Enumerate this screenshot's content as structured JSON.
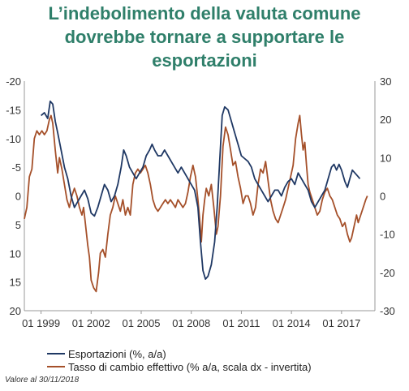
{
  "title_lines": [
    "L’indebolimento della valuta comune",
    "dovrebbe tornare a supportare le",
    "esportazioni"
  ],
  "note": "Valore al 30/11/2018",
  "colors": {
    "title": "#2f7f6a",
    "series1": "#1f3864",
    "series2": "#a5502a",
    "axis": "#999999"
  },
  "chart_data": {
    "type": "line",
    "title": "L’indebolimento della valuta comune dovrebbe tornare a supportare le esportazioni",
    "legend_position": "bottom-left",
    "grid": false,
    "x_ticks": [
      {
        "year": 1999,
        "label": "01 1999"
      },
      {
        "year": 2002,
        "label": "01 2002"
      },
      {
        "year": 2005,
        "label": "01 2005"
      },
      {
        "year": 2008,
        "label": "01 2008"
      },
      {
        "year": 2011,
        "label": "01 2011"
      },
      {
        "year": 2014,
        "label": "01 2014"
      },
      {
        "year": 2017,
        "label": "01 2017"
      }
    ],
    "xlim": [
      1998.0,
      2019.0
    ],
    "y_left": {
      "range_top": -20,
      "range_bottom": 20,
      "inverted": true,
      "ticks": [
        {
          "value": -20,
          "label": "-20"
        },
        {
          "value": -15,
          "label": "-15"
        },
        {
          "value": -10,
          "label": "-10"
        },
        {
          "value": -5,
          "label": "-5"
        },
        {
          "value": 0,
          "label": "0"
        },
        {
          "value": 5,
          "label": "5"
        },
        {
          "value": 10,
          "label": "10"
        },
        {
          "value": 15,
          "label": "15"
        },
        {
          "value": 20,
          "label": "20"
        }
      ]
    },
    "y_right": {
      "range_top": 30,
      "range_bottom": -30,
      "ticks": [
        {
          "value": 30,
          "label": "30"
        },
        {
          "value": 20,
          "label": "20"
        },
        {
          "value": 10,
          "label": "10"
        },
        {
          "value": 0,
          "label": "0"
        },
        {
          "value": -10,
          "label": "-10"
        },
        {
          "value": -20,
          "label": "-20"
        },
        {
          "value": -30,
          "label": "-30"
        }
      ]
    },
    "series": [
      {
        "name": "Esportazioni (%, a/a)",
        "axis": "left",
        "points": [
          [
            1999.0,
            -14
          ],
          [
            1999.2,
            -14.5
          ],
          [
            1999.4,
            -13.5
          ],
          [
            1999.55,
            -16.5
          ],
          [
            1999.7,
            -16
          ],
          [
            1999.85,
            -13
          ],
          [
            2000.0,
            -11
          ],
          [
            2000.2,
            -8
          ],
          [
            2000.4,
            -5
          ],
          [
            2000.6,
            -3
          ],
          [
            2000.8,
            0
          ],
          [
            2001.0,
            2
          ],
          [
            2001.2,
            1
          ],
          [
            2001.4,
            0
          ],
          [
            2001.6,
            -1
          ],
          [
            2001.8,
            0.5
          ],
          [
            2002.0,
            3
          ],
          [
            2002.2,
            3.5
          ],
          [
            2002.4,
            2
          ],
          [
            2002.6,
            0
          ],
          [
            2002.8,
            -2
          ],
          [
            2003.0,
            -1
          ],
          [
            2003.2,
            1
          ],
          [
            2003.4,
            0
          ],
          [
            2003.6,
            -2
          ],
          [
            2003.8,
            -5
          ],
          [
            2003.95,
            -8
          ],
          [
            2004.1,
            -7
          ],
          [
            2004.3,
            -5
          ],
          [
            2004.5,
            -4
          ],
          [
            2004.7,
            -3
          ],
          [
            2004.9,
            -4
          ],
          [
            2005.1,
            -5
          ],
          [
            2005.3,
            -7
          ],
          [
            2005.5,
            -8
          ],
          [
            2005.65,
            -9
          ],
          [
            2005.8,
            -8
          ],
          [
            2006.0,
            -7
          ],
          [
            2006.2,
            -7
          ],
          [
            2006.4,
            -8
          ],
          [
            2006.6,
            -7
          ],
          [
            2006.8,
            -6
          ],
          [
            2007.0,
            -5
          ],
          [
            2007.2,
            -4
          ],
          [
            2007.4,
            -5
          ],
          [
            2007.6,
            -4
          ],
          [
            2007.8,
            -3
          ],
          [
            2008.0,
            -2
          ],
          [
            2008.2,
            -1
          ],
          [
            2008.4,
            2
          ],
          [
            2008.55,
            8
          ],
          [
            2008.7,
            13
          ],
          [
            2008.85,
            14.5
          ],
          [
            2009.0,
            14
          ],
          [
            2009.2,
            12
          ],
          [
            2009.4,
            8
          ],
          [
            2009.55,
            2
          ],
          [
            2009.7,
            -6
          ],
          [
            2009.85,
            -14
          ],
          [
            2010.0,
            -15.5
          ],
          [
            2010.2,
            -15
          ],
          [
            2010.4,
            -13
          ],
          [
            2010.6,
            -11
          ],
          [
            2010.8,
            -9
          ],
          [
            2011.0,
            -7
          ],
          [
            2011.2,
            -6.5
          ],
          [
            2011.4,
            -6
          ],
          [
            2011.6,
            -5
          ],
          [
            2011.8,
            -3
          ],
          [
            2012.0,
            -2
          ],
          [
            2012.2,
            -1
          ],
          [
            2012.4,
            0
          ],
          [
            2012.6,
            1
          ],
          [
            2012.8,
            0
          ],
          [
            2013.0,
            -1
          ],
          [
            2013.2,
            -1
          ],
          [
            2013.4,
            0
          ],
          [
            2013.6,
            -1.5
          ],
          [
            2013.8,
            -2.5
          ],
          [
            2014.0,
            -3
          ],
          [
            2014.2,
            -2
          ],
          [
            2014.4,
            -4
          ],
          [
            2014.6,
            -3
          ],
          [
            2014.8,
            -2
          ],
          [
            2015.0,
            -1
          ],
          [
            2015.2,
            1
          ],
          [
            2015.4,
            2
          ],
          [
            2015.6,
            1
          ],
          [
            2015.8,
            0
          ],
          [
            2016.0,
            -1
          ],
          [
            2016.2,
            -3
          ],
          [
            2016.4,
            -5
          ],
          [
            2016.55,
            -5.5
          ],
          [
            2016.7,
            -4.5
          ],
          [
            2016.85,
            -5.5
          ],
          [
            2017.0,
            -4.5
          ],
          [
            2017.2,
            -2.5
          ],
          [
            2017.35,
            -1.5
          ],
          [
            2017.5,
            -3
          ],
          [
            2017.65,
            -4.5
          ],
          [
            2017.8,
            -4
          ],
          [
            2017.95,
            -3.5
          ],
          [
            2018.1,
            -3
          ]
        ]
      },
      {
        "name": "Tasso di cambio effettivo (% a/a, scala dx - invertita)",
        "axis": "right",
        "points": [
          [
            1998.0,
            -6
          ],
          [
            1998.15,
            -3
          ],
          [
            1998.3,
            5
          ],
          [
            1998.45,
            7
          ],
          [
            1998.6,
            15
          ],
          [
            1998.75,
            17
          ],
          [
            1998.9,
            16
          ],
          [
            1999.05,
            17
          ],
          [
            1999.2,
            16
          ],
          [
            1999.35,
            17
          ],
          [
            1999.5,
            20
          ],
          [
            1999.6,
            21
          ],
          [
            1999.7,
            19
          ],
          [
            1999.85,
            12
          ],
          [
            2000.0,
            6
          ],
          [
            2000.1,
            10
          ],
          [
            2000.25,
            7
          ],
          [
            2000.4,
            3
          ],
          [
            2000.55,
            -1
          ],
          [
            2000.7,
            -3
          ],
          [
            2000.85,
            0
          ],
          [
            2001.0,
            2
          ],
          [
            2001.15,
            0
          ],
          [
            2001.3,
            -3
          ],
          [
            2001.45,
            -5
          ],
          [
            2001.55,
            -3
          ],
          [
            2001.65,
            -7
          ],
          [
            2001.8,
            -13
          ],
          [
            2001.9,
            -16
          ],
          [
            2002.0,
            -22
          ],
          [
            2002.15,
            -24
          ],
          [
            2002.3,
            -25
          ],
          [
            2002.45,
            -20
          ],
          [
            2002.55,
            -15
          ],
          [
            2002.7,
            -14
          ],
          [
            2002.85,
            -16
          ],
          [
            2003.0,
            -10
          ],
          [
            2003.15,
            -5
          ],
          [
            2003.3,
            -3
          ],
          [
            2003.45,
            0
          ],
          [
            2003.6,
            -2
          ],
          [
            2003.75,
            -4
          ],
          [
            2003.9,
            -1
          ],
          [
            2004.05,
            -5
          ],
          [
            2004.2,
            -3
          ],
          [
            2004.35,
            -5
          ],
          [
            2004.5,
            3
          ],
          [
            2004.65,
            6
          ],
          [
            2004.8,
            7
          ],
          [
            2004.95,
            6
          ],
          [
            2005.1,
            7
          ],
          [
            2005.25,
            8
          ],
          [
            2005.4,
            6
          ],
          [
            2005.55,
            3
          ],
          [
            2005.7,
            -1
          ],
          [
            2005.85,
            -3
          ],
          [
            2006.0,
            -4
          ],
          [
            2006.15,
            -3
          ],
          [
            2006.3,
            -2
          ],
          [
            2006.45,
            -1
          ],
          [
            2006.6,
            -2
          ],
          [
            2006.75,
            -1
          ],
          [
            2006.9,
            -2
          ],
          [
            2007.05,
            -3
          ],
          [
            2007.2,
            -1
          ],
          [
            2007.35,
            -2
          ],
          [
            2007.5,
            -3
          ],
          [
            2007.65,
            -2
          ],
          [
            2007.8,
            1
          ],
          [
            2007.95,
            5
          ],
          [
            2008.1,
            8
          ],
          [
            2008.25,
            5
          ],
          [
            2008.4,
            -1
          ],
          [
            2008.5,
            -6
          ],
          [
            2008.6,
            -12
          ],
          [
            2008.7,
            -5
          ],
          [
            2008.8,
            -1
          ],
          [
            2008.9,
            2
          ],
          [
            2009.05,
            0
          ],
          [
            2009.2,
            3
          ],
          [
            2009.35,
            -3
          ],
          [
            2009.5,
            -10
          ],
          [
            2009.6,
            -8
          ],
          [
            2009.75,
            0
          ],
          [
            2009.9,
            13
          ],
          [
            2010.05,
            18
          ],
          [
            2010.2,
            16
          ],
          [
            2010.35,
            12
          ],
          [
            2010.5,
            8
          ],
          [
            2010.65,
            9
          ],
          [
            2010.8,
            5
          ],
          [
            2010.95,
            2
          ],
          [
            2011.1,
            -2
          ],
          [
            2011.25,
            0
          ],
          [
            2011.4,
            0
          ],
          [
            2011.55,
            -2
          ],
          [
            2011.7,
            -5
          ],
          [
            2011.85,
            -3
          ],
          [
            2012.0,
            3
          ],
          [
            2012.15,
            7
          ],
          [
            2012.3,
            6
          ],
          [
            2012.45,
            9
          ],
          [
            2012.6,
            4
          ],
          [
            2012.75,
            -1
          ],
          [
            2012.9,
            -4
          ],
          [
            2013.05,
            -6
          ],
          [
            2013.2,
            -7
          ],
          [
            2013.35,
            -5
          ],
          [
            2013.5,
            -3
          ],
          [
            2013.65,
            -1
          ],
          [
            2013.8,
            2
          ],
          [
            2013.95,
            5
          ],
          [
            2014.1,
            8
          ],
          [
            2014.25,
            15
          ],
          [
            2014.4,
            19
          ],
          [
            2014.5,
            21
          ],
          [
            2014.6,
            16
          ],
          [
            2014.7,
            12
          ],
          [
            2014.8,
            14
          ],
          [
            2014.9,
            8
          ],
          [
            2015.0,
            3
          ],
          [
            2015.1,
            1
          ],
          [
            2015.25,
            -1
          ],
          [
            2015.4,
            -3
          ],
          [
            2015.55,
            -5
          ],
          [
            2015.7,
            -4
          ],
          [
            2015.85,
            -1
          ],
          [
            2016.0,
            1
          ],
          [
            2016.15,
            2
          ],
          [
            2016.3,
            0
          ],
          [
            2016.45,
            -1
          ],
          [
            2016.6,
            -3
          ],
          [
            2016.75,
            -5
          ],
          [
            2016.9,
            -6
          ],
          [
            2017.05,
            -8
          ],
          [
            2017.2,
            -7
          ],
          [
            2017.35,
            -10
          ],
          [
            2017.5,
            -12
          ],
          [
            2017.6,
            -11
          ],
          [
            2017.75,
            -8
          ],
          [
            2017.9,
            -5
          ],
          [
            2018.0,
            -7
          ],
          [
            2018.15,
            -5
          ],
          [
            2018.3,
            -3
          ],
          [
            2018.45,
            -1
          ],
          [
            2018.55,
            0
          ]
        ]
      }
    ]
  }
}
